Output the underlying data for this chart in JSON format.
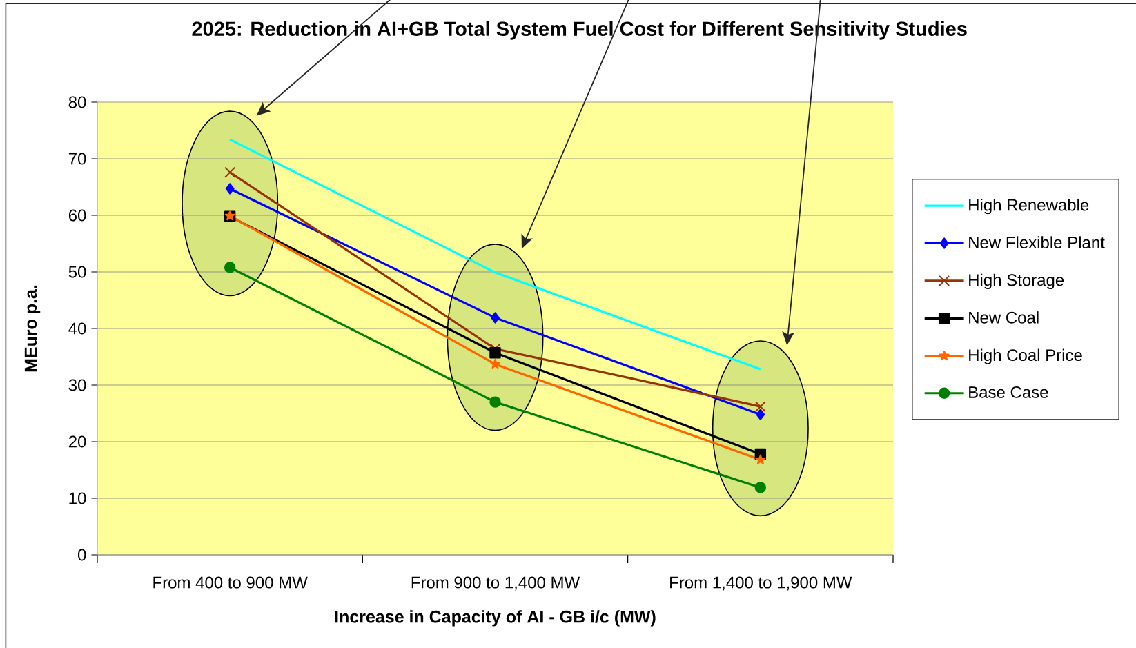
{
  "chart_data": {
    "type": "line",
    "title": "2025:  Reduction in AI+GB Total System Fuel Cost for Different Sensitivity Studies",
    "xlabel": "Increase in Capacity of AI - GB i/c (MW)",
    "ylabel": "MEuro p.a.",
    "categories": [
      "From 400 to 900 MW",
      "From 900 to 1,400 MW",
      "From 1,400 to 1,900 MW"
    ],
    "series": [
      {
        "name": "High Renewable",
        "color": "#00ffff",
        "marker": "none",
        "values": [
          73.4,
          49.9,
          32.8
        ]
      },
      {
        "name": "New Flexible Plant",
        "color": "#0000ff",
        "marker": "diamond",
        "values": [
          64.7,
          41.9,
          24.8
        ]
      },
      {
        "name": "High Storage",
        "color": "#993300",
        "marker": "cross",
        "values": [
          67.6,
          36.4,
          26.2
        ]
      },
      {
        "name": "New Coal",
        "color": "#000000",
        "marker": "square",
        "values": [
          59.8,
          35.7,
          17.8
        ]
      },
      {
        "name": "High Coal Price",
        "color": "#ff6600",
        "marker": "star",
        "values": [
          59.9,
          33.7,
          16.8
        ]
      },
      {
        "name": "Base Case",
        "color": "#008000",
        "marker": "circle",
        "values": [
          50.8,
          27.0,
          11.9
        ]
      }
    ],
    "ylim": [
      0,
      80
    ],
    "yticks": [
      0,
      10,
      20,
      30,
      40,
      50,
      60,
      70,
      80
    ],
    "grid": "y",
    "legend": "right",
    "line_style": "solid"
  }
}
